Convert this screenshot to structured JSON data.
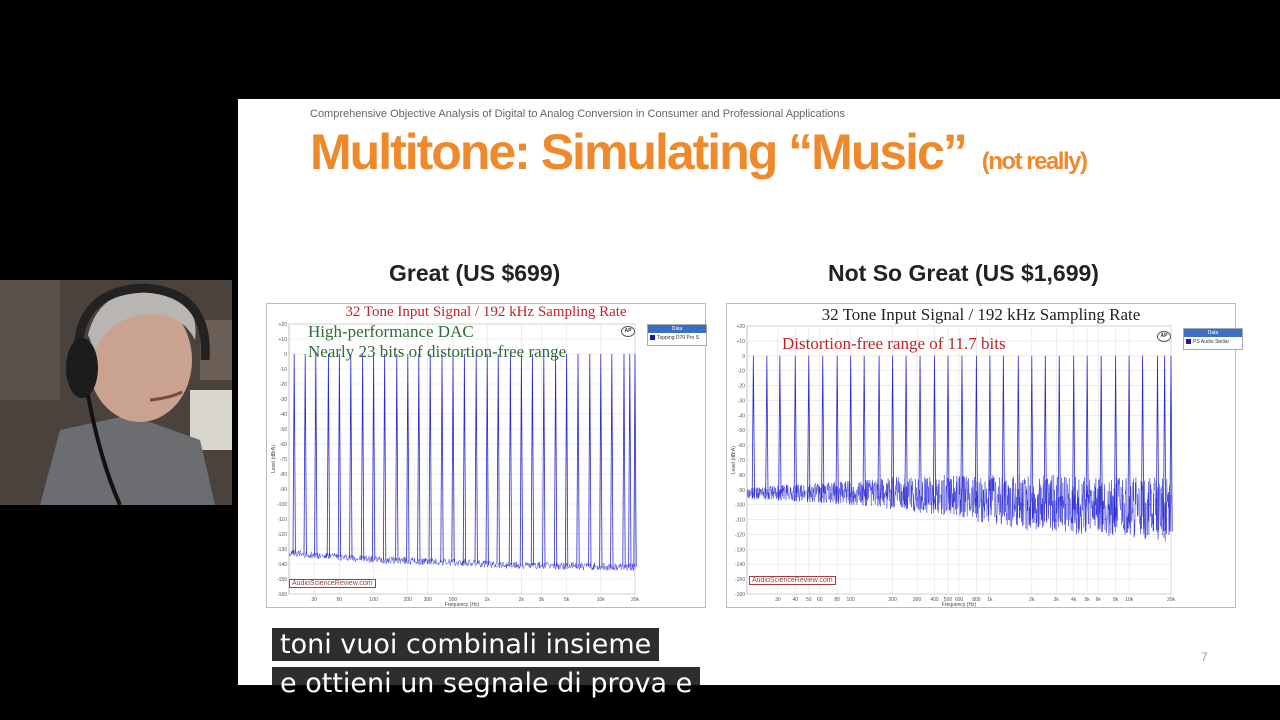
{
  "slide": {
    "kicker": "Comprehensive Objective Analysis of Digital to Analog Conversion in Consumer and Professional Applications",
    "title": "Multitone: Simulating “Music”",
    "title_sub": "(not really)",
    "left_heading": "Great (US $699)",
    "right_heading": "Not So Great (US $1,699)",
    "page_number": "7"
  },
  "captions": {
    "line1": "toni vuoi  combinali insieme",
    "line2": "e ottieni un segnale di prova e"
  },
  "chart_data": [
    {
      "type": "line",
      "title": "32 Tone Input Signal / 192 kHz Sampling Rate",
      "annotations": [
        "High-performance DAC",
        "Nearly 23 bits of distortion-free range"
      ],
      "annotation_color": "#2e6b3a",
      "title_color": "#c0242a",
      "legend_header": "Data",
      "legend_entries": [
        "Topping D70 Pro S"
      ],
      "watermark": "AudioScienceReview.com",
      "ap_logo": "AP",
      "ylabel": "Level (dBrA)",
      "xlabel": "Frequency (Hz)",
      "x_scale": "log",
      "xlim": [
        18,
        20000
      ],
      "ylim": [
        -160,
        20
      ],
      "yticks": [
        20,
        10,
        0,
        -10,
        -20,
        -30,
        -40,
        -50,
        -60,
        -70,
        -80,
        -90,
        -100,
        -110,
        -120,
        -130,
        -140,
        -150,
        -160
      ],
      "xticks": [
        {
          "v": 30,
          "label": "30"
        },
        {
          "v": 50,
          "label": "50"
        },
        {
          "v": 100,
          "label": "100"
        },
        {
          "v": 200,
          "label": "200"
        },
        {
          "v": 300,
          "label": "300"
        },
        {
          "v": 500,
          "label": "500"
        },
        {
          "v": 1000,
          "label": "1k"
        },
        {
          "v": 2000,
          "label": "2k"
        },
        {
          "v": 3000,
          "label": "3k"
        },
        {
          "v": 5000,
          "label": "5k"
        },
        {
          "v": 10000,
          "label": "10k"
        },
        {
          "v": 20000,
          "label": "20k"
        }
      ],
      "tones_hz": [
        20,
        25,
        31,
        40,
        50,
        63,
        80,
        100,
        125,
        160,
        200,
        250,
        315,
        400,
        500,
        630,
        800,
        1000,
        1250,
        1600,
        2000,
        2500,
        3150,
        4000,
        5000,
        6300,
        8000,
        10000,
        12500,
        16000,
        18000,
        20000
      ],
      "tone_level_db": 0,
      "noise_floor_db": [
        [
          20,
          -133
        ],
        [
          100,
          -137
        ],
        [
          500,
          -139
        ],
        [
          2000,
          -141
        ],
        [
          20000,
          -142
        ]
      ],
      "grass_db": null,
      "line_color": "#2b2bd6"
    },
    {
      "type": "line",
      "title": "32 Tone Input Signal / 192 kHz Sampling Rate",
      "annotations": [
        "Distortion-free range of 11.7 bits"
      ],
      "annotation_color": "#c0242a",
      "title_color": "#222222",
      "legend_header": "Data",
      "legend_entries": [
        "PS Audio Stellar"
      ],
      "watermark": "AudioScienceReview.com",
      "ap_logo": "AP",
      "ylabel": "Level (dBrA)",
      "xlabel": "Frequency (Hz)",
      "x_scale": "log",
      "xlim": [
        18,
        20000
      ],
      "ylim": [
        -160,
        20
      ],
      "yticks": [
        20,
        10,
        0,
        -10,
        -20,
        -30,
        -40,
        -50,
        -60,
        -70,
        -80,
        -90,
        -100,
        -110,
        -120,
        -130,
        -140,
        -150,
        -160
      ],
      "xticks": [
        {
          "v": 30,
          "label": "30"
        },
        {
          "v": 40,
          "label": "40"
        },
        {
          "v": 50,
          "label": "50"
        },
        {
          "v": 60,
          "label": "60"
        },
        {
          "v": 80,
          "label": "80"
        },
        {
          "v": 100,
          "label": "100"
        },
        {
          "v": 200,
          "label": "200"
        },
        {
          "v": 300,
          "label": "300"
        },
        {
          "v": 400,
          "label": "400"
        },
        {
          "v": 500,
          "label": "500"
        },
        {
          "v": 600,
          "label": "600"
        },
        {
          "v": 800,
          "label": "800"
        },
        {
          "v": 1000,
          "label": "1k"
        },
        {
          "v": 2000,
          "label": "2k"
        },
        {
          "v": 3000,
          "label": "3k"
        },
        {
          "v": 4000,
          "label": "4k"
        },
        {
          "v": 5000,
          "label": "5k"
        },
        {
          "v": 6000,
          "label": "6k"
        },
        {
          "v": 8000,
          "label": "8k"
        },
        {
          "v": 10000,
          "label": "10k"
        },
        {
          "v": 20000,
          "label": "20k"
        }
      ],
      "tones_hz": [
        20,
        25,
        31,
        40,
        50,
        63,
        80,
        100,
        125,
        160,
        200,
        250,
        315,
        400,
        500,
        630,
        800,
        1000,
        1250,
        1600,
        2000,
        2500,
        3150,
        4000,
        5000,
        6300,
        8000,
        10000,
        12500,
        16000,
        18000,
        20000
      ],
      "tone_level_db": 0,
      "noise_floor_db": [
        [
          20,
          -96
        ],
        [
          100,
          -100
        ],
        [
          500,
          -104
        ],
        [
          2000,
          -110
        ],
        [
          20000,
          -118
        ]
      ],
      "grass_db": [
        [
          20,
          -88,
          -96
        ],
        [
          100,
          -84,
          -100
        ],
        [
          150,
          -82,
          -102
        ],
        [
          500,
          -80,
          -108
        ],
        [
          2000,
          -80,
          -118
        ],
        [
          20000,
          -82,
          -125
        ]
      ],
      "line_color": "#2b2bd6"
    }
  ]
}
